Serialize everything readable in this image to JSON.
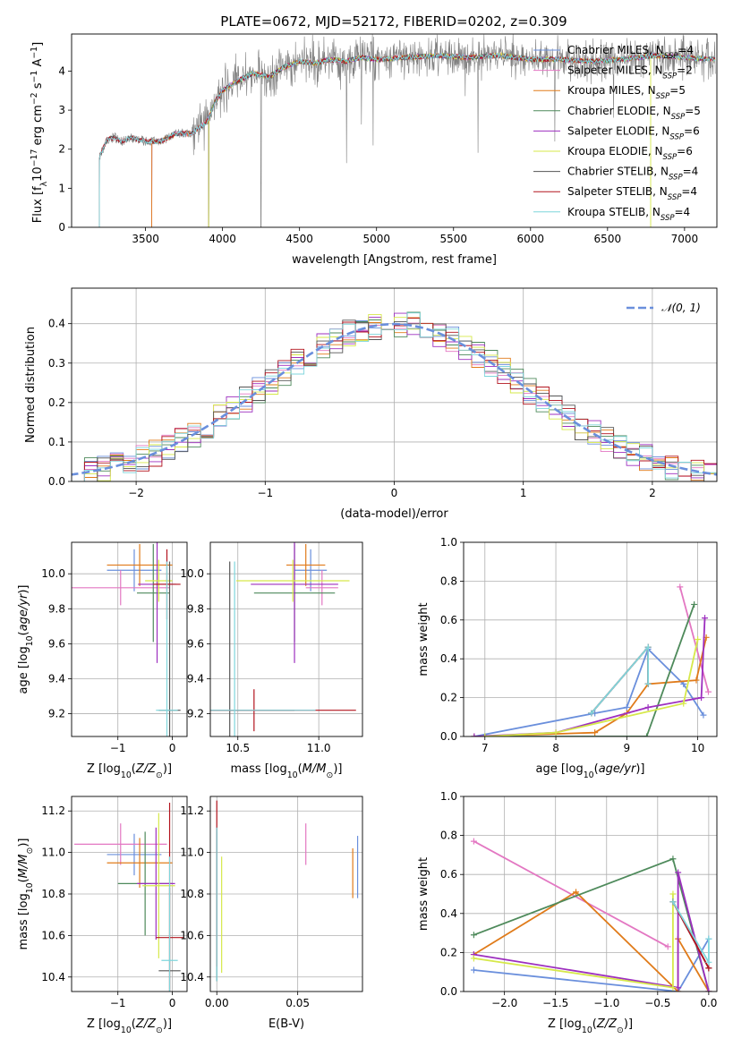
{
  "figure_title": "PLATE=0672, MJD=52172, FIBERID=0202, z=0.309",
  "colors": {
    "Chabrier MILES": "#6a8fdc",
    "Salpeter MILES": "#e377c2",
    "Kroupa MILES": "#e07b1a",
    "Chabrier ELODIE": "#4e8a5b",
    "Salpeter ELODIE": "#9d2fbf",
    "Kroupa ELODIE": "#d6e84a",
    "Chabrier STELIB": "#555555",
    "Salpeter STELIB": "#b3141f",
    "Kroupa STELIB": "#7fd6dc",
    "data": "#808080",
    "normal": "#6a8fdc",
    "grid": "#b0b0b0"
  },
  "chart_data": [
    {
      "id": "spectrum",
      "type": "line",
      "title": "PLATE=0672, MJD=52172, FIBERID=0202, z=0.309",
      "xlabel": "wavelength [Angstrom, rest frame]",
      "ylabel": "Flux [f_λ 10^-17 erg cm^-2 s^-1 A^-1]",
      "xlim": [
        3020,
        7210
      ],
      "ylim": [
        0,
        4.95
      ],
      "xticks": [
        3500,
        4000,
        4500,
        5000,
        5500,
        6000,
        6500,
        7000
      ],
      "yticks": [
        0,
        1,
        2,
        3,
        4
      ],
      "grid": false,
      "legend_position": "top-right",
      "continuum": {
        "x": [
          3200,
          3250,
          3300,
          3350,
          3400,
          3500,
          3600,
          3700,
          3800,
          3900,
          3950,
          4000,
          4100,
          4200,
          4300,
          4400,
          4500,
          4600,
          4700,
          4800,
          4900,
          5000,
          5200,
          5400,
          5600,
          5800,
          6000,
          6200,
          6400,
          6600,
          6800,
          7000,
          7200
        ],
        "y": [
          1.8,
          2.25,
          2.3,
          2.2,
          2.3,
          2.2,
          2.2,
          2.4,
          2.4,
          2.7,
          3.2,
          3.5,
          3.75,
          3.95,
          3.85,
          4.1,
          4.25,
          4.2,
          4.3,
          4.25,
          4.35,
          4.3,
          4.35,
          4.4,
          4.35,
          4.4,
          4.3,
          4.3,
          4.25,
          4.3,
          4.4,
          4.35,
          4.3
        ]
      },
      "series": [
        {
          "name": "Chabrier MILES, N_SSP=4",
          "label": "Chabrier MILES, N",
          "ssp": "4",
          "start": 3540
        },
        {
          "name": "Salpeter MILES, N_SSP=2",
          "label": "Salpeter MILES, N",
          "ssp": "2",
          "start": 3540
        },
        {
          "name": "Kroupa MILES, N_SSP=5",
          "label": "Kroupa MILES, N",
          "ssp": "5",
          "start": 3540
        },
        {
          "name": "Chabrier ELODIE, N_SSP=5",
          "label": "Chabrier ELODIE, N",
          "ssp": "5",
          "start": 3910
        },
        {
          "name": "Salpeter ELODIE, N_SSP=6",
          "label": "Salpeter ELODIE, N",
          "ssp": "6",
          "start": 3910
        },
        {
          "name": "Kroupa ELODIE, N_SSP=6",
          "label": "Kroupa ELODIE, N",
          "ssp": "6",
          "start": 3910
        },
        {
          "name": "Chabrier STELIB, N_SSP=4",
          "label": "Chabrier STELIB, N",
          "ssp": "4",
          "start": 3200
        },
        {
          "name": "Salpeter STELIB, N_SSP=4",
          "label": "Salpeter STELIB, N",
          "ssp": "4",
          "start": 3200
        },
        {
          "name": "Kroupa STELIB, N_SSP=4",
          "label": "Kroupa STELIB, N",
          "ssp": "4",
          "start": 3200
        }
      ]
    },
    {
      "id": "residuals",
      "type": "line",
      "xlabel": "(data-model)/error",
      "ylabel": "Normed distribution",
      "xlim": [
        -2.5,
        2.5
      ],
      "ylim": [
        0,
        0.49
      ],
      "xticks": [
        -2,
        -1,
        0,
        1,
        2
      ],
      "yticks": [
        0.0,
        0.1,
        0.2,
        0.3,
        0.4
      ],
      "grid": true,
      "legend": "𝒩(0, 1)",
      "legend_position": "top-right"
    },
    {
      "id": "age_vs_Z",
      "type": "scatter",
      "xlabel": "Z [log10(Z/Z⊙)]",
      "ylabel": "age [log10(age/yr)]",
      "xlim": [
        -1.85,
        0.27
      ],
      "ylim": [
        9.07,
        10.18
      ],
      "xticks": [
        -1,
        0
      ],
      "yticks": [
        9.2,
        9.4,
        9.6,
        9.8,
        10.0
      ],
      "grid": true,
      "points": [
        {
          "series": "Chabrier MILES",
          "x": -0.7,
          "y": 10.02,
          "xerr": 0.5,
          "yerr": 0.12
        },
        {
          "series": "Salpeter MILES",
          "x": -0.95,
          "y": 9.92,
          "xerr": 0.9,
          "yerr": 0.1
        },
        {
          "series": "Kroupa MILES",
          "x": -0.6,
          "y": 10.05,
          "xerr": 0.6,
          "yerr": 0.12
        },
        {
          "series": "Chabrier ELODIE",
          "x": -0.35,
          "y": 9.89,
          "xerr": 0.3,
          "yerr": 0.28
        },
        {
          "series": "Salpeter ELODIE",
          "x": -0.28,
          "y": 9.94,
          "xerr": 0.35,
          "yerr": 0.45
        },
        {
          "series": "Kroupa ELODIE",
          "x": -0.25,
          "y": 9.96,
          "xerr": 0.25,
          "yerr": 0.12
        },
        {
          "series": "Chabrier STELIB",
          "x": -0.05,
          "y": 9.22,
          "xerr": 0.2,
          "yerr": 0.85
        },
        {
          "series": "Salpeter STELIB",
          "x": -0.1,
          "y": 9.94,
          "xerr": 0.25,
          "yerr": 0.2
        },
        {
          "series": "Kroupa STELIB",
          "x": -0.1,
          "y": 9.22,
          "xerr": 0.2,
          "yerr": 0.85
        }
      ]
    },
    {
      "id": "age_vs_mass",
      "type": "scatter",
      "xlabel": "mass [log10(M/M⊙)]",
      "ylabel": "",
      "xlim": [
        10.33,
        11.27
      ],
      "ylim": [
        9.07,
        10.18
      ],
      "xticks": [
        10.5,
        11.0
      ],
      "yticks": [
        9.2,
        9.4,
        9.6,
        9.8,
        10.0
      ],
      "grid": true,
      "points": [
        {
          "series": "Chabrier MILES",
          "x": 10.95,
          "y": 10.02,
          "xerr": 0.1,
          "yerr": 0.12
        },
        {
          "series": "Salpeter MILES",
          "x": 11.02,
          "y": 9.92,
          "xerr": 0.1,
          "yerr": 0.1
        },
        {
          "series": "Kroupa MILES",
          "x": 10.92,
          "y": 10.05,
          "xerr": 0.12,
          "yerr": 0.12
        },
        {
          "series": "Chabrier ELODIE",
          "x": 10.85,
          "y": 9.89,
          "xerr": 0.25,
          "yerr": 0.28
        },
        {
          "series": "Salpeter ELODIE",
          "x": 10.85,
          "y": 9.94,
          "xerr": 0.27,
          "yerr": 0.45
        },
        {
          "series": "Kroupa ELODIE",
          "x": 10.84,
          "y": 9.96,
          "xerr": 0.35,
          "yerr": 0.12
        },
        {
          "series": "Chabrier STELIB",
          "x": 10.45,
          "y": 9.22,
          "xerr": 0.4,
          "yerr": 0.85
        },
        {
          "series": "Salpeter STELIB",
          "x": 10.6,
          "y": 9.22,
          "xerr": 0.63,
          "yerr": 0.12
        },
        {
          "series": "Kroupa STELIB",
          "x": 10.48,
          "y": 9.22,
          "xerr": 0.5,
          "yerr": 0.85
        }
      ]
    },
    {
      "id": "weight_vs_age",
      "type": "line",
      "xlabel": "age [log10(age/yr)]",
      "ylabel": "mass weight",
      "xlim": [
        6.7,
        10.27
      ],
      "ylim": [
        0,
        1.0
      ],
      "xticks": [
        7,
        8,
        9,
        10
      ],
      "yticks": [
        0.0,
        0.2,
        0.4,
        0.6,
        0.8,
        1.0
      ],
      "grid": true,
      "series": [
        {
          "series": "Chabrier MILES",
          "x": [
            6.85,
            8.55,
            9.0,
            9.3,
            9.8,
            10.08
          ],
          "y": [
            0.0,
            0.12,
            0.15,
            0.45,
            0.27,
            0.11
          ]
        },
        {
          "series": "Salpeter MILES",
          "x": [
            9.75,
            10.15
          ],
          "y": [
            0.77,
            0.23
          ]
        },
        {
          "series": "Kroupa MILES",
          "x": [
            6.85,
            8.55,
            9.0,
            9.3,
            9.98,
            10.12
          ],
          "y": [
            0.0,
            0.02,
            0.12,
            0.27,
            0.29,
            0.51
          ]
        },
        {
          "series": "Chabrier ELODIE",
          "x": [
            7.0,
            9.28,
            9.95
          ],
          "y": [
            0.0,
            0.0,
            0.68
          ]
        },
        {
          "series": "Salpeter ELODIE",
          "x": [
            6.85,
            8.0,
            9.3,
            10.05,
            10.1
          ],
          "y": [
            0.0,
            0.02,
            0.15,
            0.2,
            0.61
          ]
        },
        {
          "series": "Kroupa ELODIE",
          "x": [
            7.0,
            8.0,
            9.8,
            10.0
          ],
          "y": [
            0.0,
            0.02,
            0.17,
            0.5
          ]
        },
        {
          "series": "Chabrier STELIB",
          "x": [
            8.5,
            9.3,
            9.3
          ],
          "y": [
            0.12,
            0.46,
            0.27
          ]
        },
        {
          "series": "Salpeter STELIB",
          "x": [
            8.5,
            9.3,
            9.3
          ],
          "y": [
            0.12,
            0.46,
            0.27
          ]
        },
        {
          "series": "Kroupa STELIB",
          "x": [
            8.5,
            9.3,
            9.3
          ],
          "y": [
            0.12,
            0.46,
            0.27
          ]
        }
      ]
    },
    {
      "id": "mass_vs_Z",
      "type": "scatter",
      "xlabel": "Z [log10(Z/Z⊙)]",
      "ylabel": "mass [log10(M/M⊙)]",
      "xlim": [
        -1.85,
        0.27
      ],
      "ylim": [
        10.33,
        11.27
      ],
      "xticks": [
        -1,
        0
      ],
      "yticks": [
        10.4,
        10.6,
        10.8,
        11.0,
        11.2
      ],
      "grid": true,
      "points": [
        {
          "series": "Chabrier MILES",
          "x": -0.7,
          "y": 10.99,
          "xerr": 0.5,
          "yerr": 0.1
        },
        {
          "series": "Salpeter MILES",
          "x": -0.95,
          "y": 11.04,
          "xerr": 0.85,
          "yerr": 0.1
        },
        {
          "series": "Kroupa MILES",
          "x": -0.6,
          "y": 10.95,
          "xerr": 0.6,
          "yerr": 0.12
        },
        {
          "series": "Chabrier ELODIE",
          "x": -0.5,
          "y": 10.85,
          "xerr": 0.5,
          "yerr": 0.25
        },
        {
          "series": "Salpeter ELODIE",
          "x": -0.3,
          "y": 10.85,
          "xerr": 0.35,
          "yerr": 0.27
        },
        {
          "series": "Kroupa ELODIE",
          "x": -0.25,
          "y": 10.84,
          "xerr": 0.3,
          "yerr": 0.35
        },
        {
          "series": "Chabrier STELIB",
          "x": -0.05,
          "y": 10.43,
          "xerr": 0.2,
          "yerr": 0.4
        },
        {
          "series": "Salpeter STELIB",
          "x": -0.05,
          "y": 10.59,
          "xerr": 0.25,
          "yerr": 0.65
        },
        {
          "series": "Kroupa STELIB",
          "x": -0.05,
          "y": 10.48,
          "xerr": 0.15,
          "yerr": 0.5
        }
      ]
    },
    {
      "id": "mass_vs_ebv",
      "type": "scatter",
      "xlabel": "E(B-V)",
      "ylabel": "",
      "xlim": [
        -0.004,
        0.09
      ],
      "ylim": [
        10.33,
        11.27
      ],
      "xticks": [
        0.0,
        0.05
      ],
      "yticks": [
        10.4,
        10.6,
        10.8,
        11.0,
        11.2
      ],
      "grid": true,
      "points": [
        {
          "series": "Chabrier MILES",
          "x": 0.087,
          "y": 10.93,
          "xerr": 0.0,
          "yerr": 0.15
        },
        {
          "series": "Salpeter MILES",
          "x": 0.055,
          "y": 11.04,
          "xerr": 0.0,
          "yerr": 0.1
        },
        {
          "series": "Kroupa MILES",
          "x": 0.084,
          "y": 10.9,
          "xerr": 0.0,
          "yerr": 0.12
        },
        {
          "series": "Chabrier ELODIE",
          "x": 0.0,
          "y": 10.85,
          "xerr": 0.0,
          "yerr": 0.25
        },
        {
          "series": "Salpeter ELODIE",
          "x": 0.0,
          "y": 10.85,
          "xerr": 0.0,
          "yerr": 0.27
        },
        {
          "series": "Kroupa ELODIE",
          "x": 0.003,
          "y": 10.7,
          "xerr": 0.0,
          "yerr": 0.28
        },
        {
          "series": "Chabrier STELIB",
          "x": 0.0,
          "y": 10.75,
          "xerr": 0.0,
          "yerr": 0.37
        },
        {
          "series": "Salpeter STELIB",
          "x": 0.0,
          "y": 10.85,
          "xerr": 0.0,
          "yerr": 0.4
        },
        {
          "series": "Kroupa STELIB",
          "x": 0.0,
          "y": 10.75,
          "xerr": 0.0,
          "yerr": 0.37
        }
      ]
    },
    {
      "id": "weight_vs_Z",
      "type": "line",
      "xlabel": "Z [log10(Z/Z⊙)]",
      "ylabel": "mass weight",
      "xlim": [
        -2.4,
        0.08
      ],
      "ylim": [
        0,
        1.0
      ],
      "xticks": [
        -2.0,
        -1.5,
        -1.0,
        -0.5,
        0.0
      ],
      "yticks": [
        0.0,
        0.2,
        0.4,
        0.6,
        0.8,
        1.0
      ],
      "grid": true,
      "series": [
        {
          "series": "Chabrier MILES",
          "x": [
            -2.3,
            -0.3,
            0.0
          ],
          "y": [
            0.11,
            0.0,
            0.27
          ]
        },
        {
          "series": "Salpeter MILES",
          "x": [
            -2.3,
            -0.4
          ],
          "y": [
            0.77,
            0.23
          ]
        },
        {
          "series": "Kroupa MILES",
          "x": [
            -2.3,
            -1.3,
            -0.3,
            -0.3,
            0.0
          ],
          "y": [
            0.19,
            0.51,
            0.0,
            0.27,
            0.0
          ]
        },
        {
          "series": "Chabrier ELODIE",
          "x": [
            -2.3,
            -0.35,
            0.0
          ],
          "y": [
            0.29,
            0.68,
            0.0
          ]
        },
        {
          "series": "Salpeter ELODIE",
          "x": [
            -2.3,
            -0.3,
            -0.3,
            0.0
          ],
          "y": [
            0.19,
            0.02,
            0.61,
            0.0
          ]
        },
        {
          "series": "Kroupa ELODIE",
          "x": [
            -2.3,
            -0.35,
            -0.35
          ],
          "y": [
            0.17,
            0.02,
            0.5
          ]
        },
        {
          "series": "Chabrier STELIB",
          "x": [
            -0.35,
            0.0
          ],
          "y": [
            0.46,
            0.12
          ]
        },
        {
          "series": "Salpeter STELIB",
          "x": [
            -0.35,
            0.0
          ],
          "y": [
            0.46,
            0.12
          ]
        },
        {
          "series": "Kroupa STELIB",
          "x": [
            -0.35,
            0.0,
            0.0
          ],
          "y": [
            0.46,
            0.15,
            0.27
          ]
        }
      ]
    }
  ]
}
